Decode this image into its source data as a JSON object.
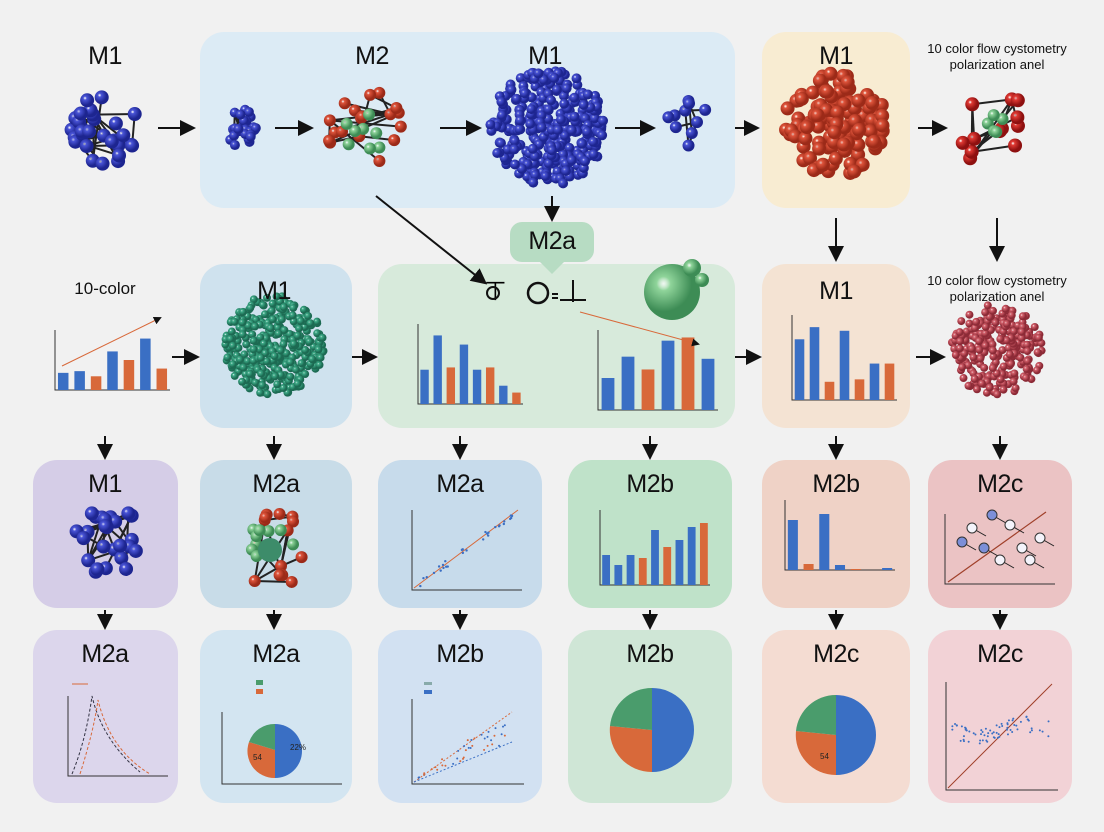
{
  "colors": {
    "blue_bar": "#3a6fc4",
    "orange_bar": "#d8693a",
    "green": "#4a9c6c",
    "arrow": "#111111"
  },
  "top": {
    "labels": [
      "M1",
      "M2",
      "M1",
      "M1"
    ],
    "note": [
      "10 color flow cystometry",
      "polarization anel"
    ]
  },
  "bubble": {
    "label": "M2a"
  },
  "row2": {
    "left_note": "10-color",
    "labels": [
      "M1",
      "M1"
    ],
    "note": [
      "10 color flow cystometry",
      "polarization anel"
    ]
  },
  "row3": {
    "labels": [
      "M1",
      "M2a",
      "M2a",
      "M2b",
      "M2b",
      "M2c"
    ]
  },
  "row4": {
    "labels": [
      "M2a",
      "M2a",
      "M2b",
      "M2b",
      "M2c",
      "M2c"
    ],
    "pie_labels": [
      "22%",
      "54",
      "54"
    ]
  },
  "mini_bars": {
    "left": [
      [
        2,
        "b"
      ],
      [
        2.2,
        "b"
      ],
      [
        1.6,
        "o"
      ],
      [
        4.5,
        "b"
      ],
      [
        3.5,
        "o"
      ],
      [
        6,
        "b"
      ],
      [
        2.5,
        "o"
      ]
    ],
    "center_a": [
      [
        3,
        "b"
      ],
      [
        6,
        "b"
      ],
      [
        3.2,
        "o"
      ],
      [
        5.2,
        "b"
      ],
      [
        3,
        "b"
      ],
      [
        3.2,
        "o"
      ],
      [
        1.6,
        "b"
      ],
      [
        1,
        "o"
      ]
    ],
    "center_b": [
      [
        3,
        "b"
      ],
      [
        5,
        "b"
      ],
      [
        3.8,
        "o"
      ],
      [
        6.5,
        "b"
      ],
      [
        6.8,
        "o"
      ],
      [
        4.8,
        "b"
      ]
    ],
    "peach": [
      [
        5,
        "b"
      ],
      [
        6,
        "b"
      ],
      [
        1.5,
        "o"
      ],
      [
        5.7,
        "b"
      ],
      [
        1.7,
        "o"
      ],
      [
        3,
        "b"
      ],
      [
        3,
        "o"
      ]
    ],
    "m2b_green": [
      [
        3,
        "b"
      ],
      [
        2,
        "b"
      ],
      [
        3,
        "b"
      ],
      [
        2.7,
        "o"
      ],
      [
        5.5,
        "b"
      ],
      [
        3.8,
        "o"
      ],
      [
        4.5,
        "b"
      ],
      [
        5.8,
        "b"
      ],
      [
        6.2,
        "o"
      ]
    ],
    "m2b_peach": [
      [
        5,
        "b"
      ],
      [
        0.6,
        "o"
      ],
      [
        5.6,
        "b"
      ],
      [
        0.5,
        "b"
      ],
      [
        0.1,
        "o"
      ],
      [
        0,
        "b"
      ],
      [
        0.2,
        "b"
      ]
    ]
  }
}
